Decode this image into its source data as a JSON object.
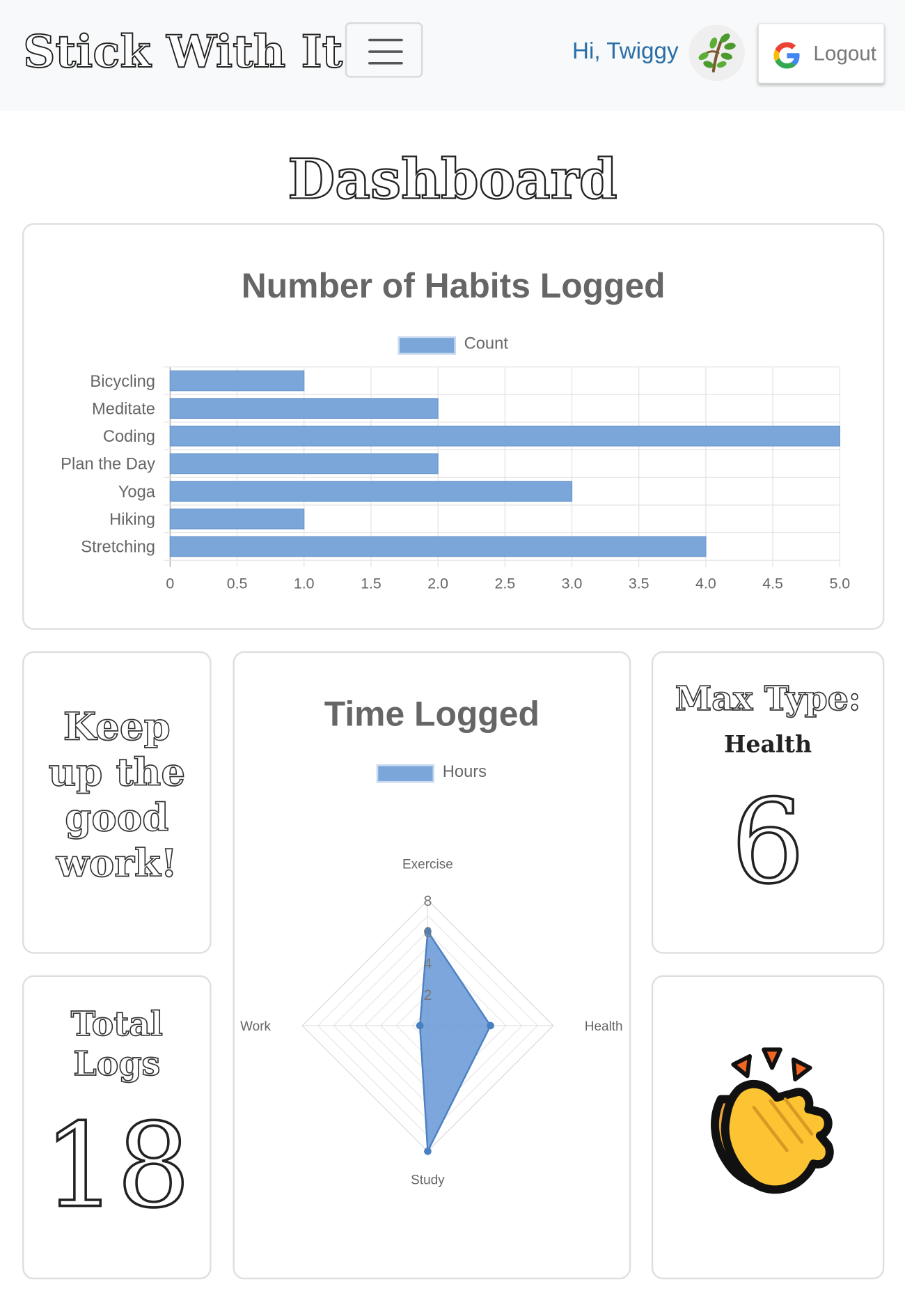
{
  "navbar": {
    "brand": "Stick With It",
    "greeting": "Hi, Twiggy",
    "logout_label": "Logout"
  },
  "page": {
    "title": "Dashboard"
  },
  "bar_card": {
    "title": "Number of Habits Logged",
    "legend": "Count"
  },
  "radar_card": {
    "title": "Time Logged",
    "legend": "Hours"
  },
  "encourage_card": {
    "lines": [
      "Keep",
      "up the",
      "good",
      "work!"
    ]
  },
  "total_card": {
    "title_lines": [
      "Total",
      "Logs"
    ],
    "value": "18"
  },
  "max_card": {
    "title": "Max Type:",
    "type": "Health",
    "value": "6"
  },
  "colors": {
    "bar_fill": "#7aa6da",
    "link": "#2a6ea8"
  },
  "icons": {
    "avatar": "sprout-icon",
    "logout": "google-icon",
    "celebrate": "clapping-hands-icon"
  },
  "chart_data": [
    {
      "type": "bar",
      "orientation": "horizontal",
      "title": "Number of Habits Logged",
      "categories": [
        "Bicycling",
        "Meditate",
        "Coding",
        "Plan the Day",
        "Yoga",
        "Hiking",
        "Stretching"
      ],
      "series": [
        {
          "name": "Count",
          "values": [
            1,
            2,
            5,
            2,
            3,
            1,
            4
          ]
        }
      ],
      "xlim": [
        0,
        5
      ],
      "xticks": [
        "0",
        "0.5",
        "1.0",
        "1.5",
        "2.0",
        "2.5",
        "3.0",
        "3.5",
        "4.0",
        "4.5",
        "5.0"
      ],
      "legend": "top",
      "grid": true
    },
    {
      "type": "radar",
      "title": "Time Logged",
      "categories": [
        "Exercise",
        "Health",
        "Study",
        "Work"
      ],
      "series": [
        {
          "name": "Hours",
          "values": [
            6,
            4,
            8,
            0.5
          ]
        }
      ],
      "rlim": [
        0,
        8
      ],
      "rticks": [
        "2",
        "4",
        "6",
        "8"
      ],
      "legend": "top",
      "grid": true
    }
  ]
}
